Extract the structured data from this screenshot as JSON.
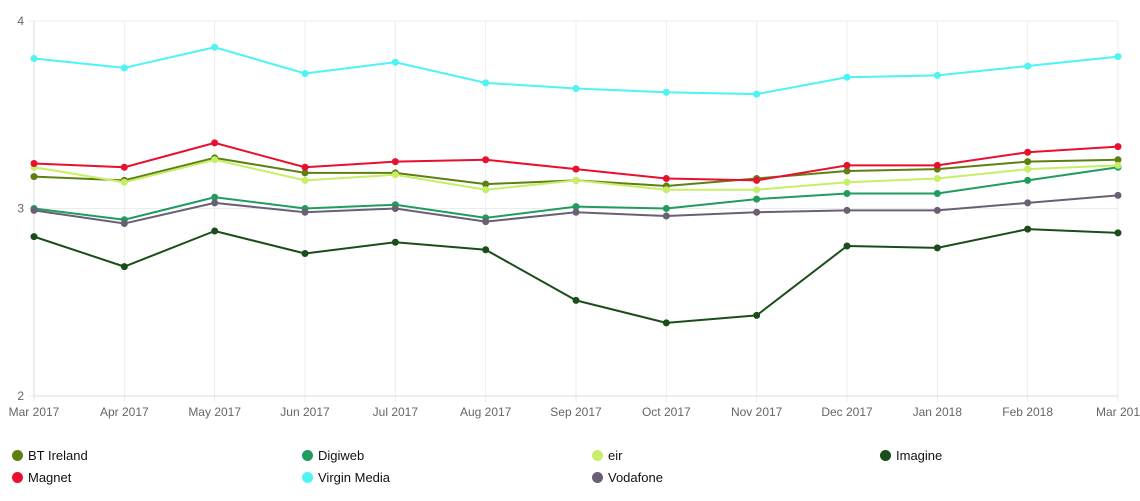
{
  "chart_data": {
    "type": "line",
    "title": "",
    "xlabel": "",
    "ylabel": "",
    "ylim": [
      2,
      4
    ],
    "yticks": [
      "2",
      "3",
      "4"
    ],
    "grid": true,
    "legend_position": "bottom",
    "categories": [
      "Mar 2017",
      "Apr 2017",
      "May 2017",
      "Jun 2017",
      "Jul 2017",
      "Aug 2017",
      "Sep 2017",
      "Oct 2017",
      "Nov 2017",
      "Dec 2017",
      "Jan 2018",
      "Feb 2018",
      "Mar 201"
    ],
    "series": [
      {
        "name": "BT Ireland",
        "color": "#5e7f12",
        "values": [
          3.17,
          3.15,
          3.27,
          3.19,
          3.19,
          3.13,
          3.15,
          3.12,
          3.16,
          3.2,
          3.21,
          3.25,
          3.26
        ]
      },
      {
        "name": "Digiweb",
        "color": "#1f9c5e",
        "values": [
          3.0,
          2.94,
          3.06,
          3.0,
          3.02,
          2.95,
          3.01,
          3.0,
          3.05,
          3.08,
          3.08,
          3.15,
          3.22
        ]
      },
      {
        "name": "eir",
        "color": "#c6ef67",
        "values": [
          3.22,
          3.14,
          3.26,
          3.15,
          3.18,
          3.1,
          3.15,
          3.1,
          3.1,
          3.14,
          3.16,
          3.21,
          3.23
        ]
      },
      {
        "name": "Imagine",
        "color": "#1a4d1a",
        "values": [
          2.85,
          2.69,
          2.88,
          2.76,
          2.82,
          2.78,
          2.51,
          2.39,
          2.43,
          2.8,
          2.79,
          2.89,
          2.87
        ]
      },
      {
        "name": "Magnet",
        "color": "#e8102e",
        "values": [
          3.24,
          3.22,
          3.35,
          3.22,
          3.25,
          3.26,
          3.21,
          3.16,
          3.15,
          3.23,
          3.23,
          3.3,
          3.33
        ]
      },
      {
        "name": "Virgin Media",
        "color": "#4ef3f3",
        "values": [
          3.8,
          3.75,
          3.86,
          3.72,
          3.78,
          3.67,
          3.64,
          3.62,
          3.61,
          3.7,
          3.71,
          3.76,
          3.81
        ]
      },
      {
        "name": "Vodafone",
        "color": "#6a5f74",
        "values": [
          2.99,
          2.92,
          3.03,
          2.98,
          3.0,
          2.93,
          2.98,
          2.96,
          2.98,
          2.99,
          2.99,
          3.03,
          3.07
        ]
      }
    ]
  }
}
